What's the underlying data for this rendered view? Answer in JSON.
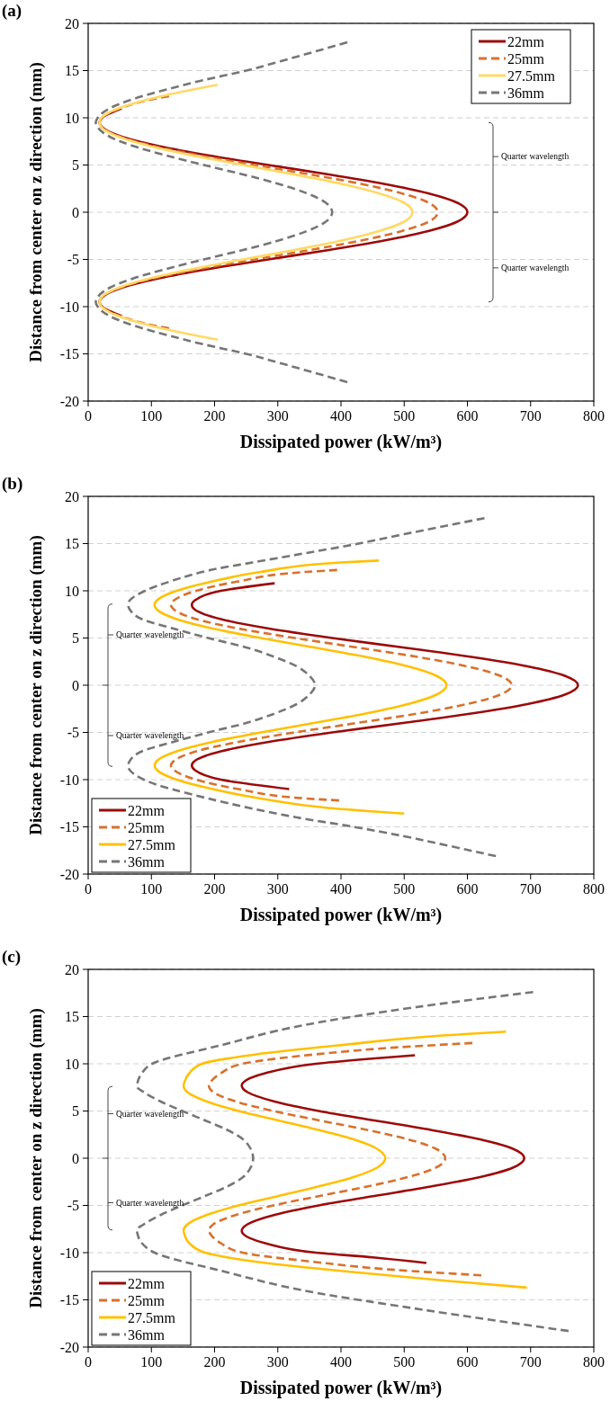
{
  "chart_data": [
    {
      "type": "line",
      "title": "(a)",
      "xlabel": "Dissipated power (kW/m³)",
      "ylabel": "Distance from center on z direction (mm)",
      "xlim": [
        0,
        800
      ],
      "xticks": [
        0,
        100,
        200,
        300,
        400,
        500,
        600,
        700,
        800
      ],
      "ylim": [
        -20,
        20
      ],
      "yticks": [
        -20,
        -15,
        -10,
        -5,
        0,
        5,
        10,
        15,
        20
      ],
      "grid": "y",
      "legend": "top right",
      "annotations": [
        "Quarter wavelength",
        "Quarter wavelength"
      ],
      "series": [
        {
          "name": "22mm",
          "color": "#9b0a0a",
          "line_style": "solid",
          "values": [
            11,
            10,
            9.5,
            9,
            8,
            7,
            6,
            5,
            4,
            3,
            2,
            1,
            0,
            -1,
            -2,
            -3,
            -4,
            -5,
            -6,
            -7,
            -8,
            -9,
            -9.5,
            -10,
            -11
          ],
          "x": [
            53,
            22,
            18,
            22,
            53,
            112,
            192,
            285,
            381,
            468,
            538,
            584,
            600,
            584,
            538,
            468,
            381,
            285,
            192,
            112,
            53,
            22,
            18,
            22,
            53
          ]
        },
        {
          "name": "25mm",
          "color": "#d8712d",
          "line_style": "dashed",
          "values": [
            12.3,
            12,
            11,
            10,
            9.5,
            9,
            8,
            7,
            6,
            5,
            4,
            3,
            2,
            1,
            0,
            -1,
            -2,
            -3,
            -4,
            -5,
            -6,
            -7,
            -8,
            -9,
            -9.5,
            -10,
            -11,
            -12,
            -12.3
          ],
          "x": [
            128,
            104,
            50,
            22,
            18,
            22,
            50,
            104,
            178,
            263,
            351,
            432,
            496,
            539,
            553,
            539,
            496,
            432,
            351,
            263,
            178,
            104,
            50,
            22,
            18,
            22,
            50,
            104,
            128
          ]
        },
        {
          "name": "27.5mm",
          "color": "#ffd966",
          "line_style": "solid",
          "values": [
            13.5,
            13,
            12,
            11,
            10,
            9.5,
            9,
            8,
            7,
            6,
            5,
            4,
            3,
            2,
            1,
            0,
            -1,
            -2,
            -3,
            -4,
            -5,
            -6,
            -7,
            -8,
            -9,
            -9.5,
            -10,
            -11,
            -12,
            -13,
            -13.5
          ],
          "x": [
            205,
            166,
            98,
            48,
            21,
            18,
            21,
            48,
            98,
            166,
            245,
            326,
            401,
            460,
            500,
            513,
            500,
            460,
            401,
            326,
            245,
            166,
            98,
            48,
            21,
            18,
            21,
            48,
            98,
            166,
            205
          ]
        },
        {
          "name": "36mm",
          "color": "#767676",
          "line_style": "dashed",
          "values": [
            18,
            17,
            16,
            15,
            14,
            13,
            12,
            11,
            10,
            9.5,
            9,
            8,
            7,
            6,
            5,
            4,
            3,
            2,
            1,
            0,
            -1,
            -2,
            -3,
            -4,
            -5,
            -6,
            -7,
            -8,
            -9,
            -9.5,
            -10,
            -11,
            -12,
            -13,
            -14,
            -15,
            -16,
            -17,
            -18
          ],
          "x": [
            410,
            358,
            305,
            250,
            183,
            124,
            72,
            34,
            15,
            12,
            15,
            34,
            72,
            124,
            183,
            245,
            301,
            346,
            376,
            386,
            376,
            346,
            301,
            245,
            183,
            124,
            72,
            34,
            15,
            12,
            15,
            34,
            72,
            124,
            183,
            250,
            305,
            358,
            410
          ]
        }
      ]
    },
    {
      "type": "line",
      "title": "(b)",
      "xlabel": "Dissipated power (kW/m³)",
      "ylabel": "Distance from center on z direction (mm)",
      "xlim": [
        0,
        800
      ],
      "xticks": [
        0,
        100,
        200,
        300,
        400,
        500,
        600,
        700,
        800
      ],
      "ylim": [
        -20,
        20
      ],
      "yticks": [
        -20,
        -15,
        -10,
        -5,
        0,
        5,
        10,
        15,
        20
      ],
      "grid": "y",
      "legend": "bottom left",
      "annotations": [
        "Quarter wavelength",
        "Quarter wavelength"
      ],
      "series": [
        {
          "name": "22mm",
          "color": "#9b0a0a",
          "line_style": "solid",
          "values": [
            10.8,
            10,
            9,
            8.5,
            8,
            7,
            6,
            5,
            4,
            3,
            2,
            1,
            0,
            -1,
            -2,
            -3,
            -4,
            -5,
            -6,
            -7,
            -8,
            -8.5,
            -9,
            -10,
            -11
          ],
          "x": [
            295,
            210,
            169,
            164,
            169,
            210,
            286,
            386,
            498,
            606,
            695,
            754,
            775,
            754,
            695,
            606,
            498,
            386,
            286,
            210,
            169,
            164,
            169,
            210,
            318
          ]
        },
        {
          "name": "25mm",
          "color": "#d8712d",
          "line_style": "dashed",
          "values": [
            12.2,
            12,
            11,
            10,
            9,
            8.5,
            8,
            7,
            6,
            5,
            4,
            3,
            2,
            1,
            0,
            -1,
            -2,
            -3,
            -4,
            -5,
            -6,
            -7,
            -8,
            -8.5,
            -9,
            -10,
            -11,
            -12,
            -12.2
          ],
          "x": [
            394,
            345,
            238,
            171,
            136,
            131,
            136,
            171,
            238,
            327,
            425,
            521,
            599,
            652,
            670,
            652,
            599,
            521,
            425,
            327,
            238,
            171,
            136,
            131,
            136,
            171,
            238,
            345,
            397
          ]
        },
        {
          "name": "27.5mm",
          "color": "#ffc000",
          "line_style": "solid",
          "values": [
            13.2,
            13,
            12,
            11,
            10,
            9,
            8.5,
            8,
            7,
            6,
            5,
            4,
            3,
            2,
            1,
            0,
            -1,
            -2,
            -3,
            -4,
            -5,
            -6,
            -7,
            -8,
            -8.5,
            -9,
            -10,
            -11,
            -12,
            -13,
            -13.6
          ],
          "x": [
            460,
            400,
            273,
            197,
            140,
            109,
            105,
            109,
            140,
            197,
            273,
            357,
            439,
            506,
            551,
            567,
            551,
            506,
            439,
            357,
            273,
            197,
            140,
            109,
            105,
            109,
            140,
            197,
            273,
            380,
            500
          ]
        },
        {
          "name": "36mm",
          "color": "#767676",
          "line_style": "dashed",
          "values": [
            17.7,
            17,
            16,
            15,
            14,
            13,
            12.3,
            11,
            10,
            9,
            8.6,
            8,
            7,
            6,
            5,
            4,
            3,
            2,
            1,
            0,
            -1,
            -2,
            -3,
            -4,
            -5,
            -6,
            -7,
            -8,
            -8.6,
            -9,
            -10,
            -12,
            -13,
            -14,
            -15,
            -16,
            -17,
            -18.1
          ],
          "x": [
            627,
            575,
            500,
            428,
            345,
            260,
            201,
            130,
            90,
            66,
            63,
            66,
            85,
            135,
            190,
            250,
            295,
            330,
            350,
            359,
            350,
            330,
            295,
            250,
            190,
            135,
            85,
            66,
            63,
            66,
            88,
            190,
            255,
            330,
            420,
            500,
            570,
            645
          ]
        }
      ]
    },
    {
      "type": "line",
      "title": "(c)",
      "xlabel": "Dissipated power (kW/m³)",
      "ylabel": "Distance from center on z direction (mm)",
      "xlim": [
        0,
        800
      ],
      "xticks": [
        0,
        100,
        200,
        300,
        400,
        500,
        600,
        700,
        800
      ],
      "ylim": [
        -20,
        20
      ],
      "yticks": [
        -20,
        -15,
        -10,
        -5,
        0,
        5,
        10,
        15,
        20
      ],
      "grid": "y",
      "legend": "bottom left",
      "annotations": [
        "Quarter wavelength",
        "Quarter wavelength"
      ],
      "series": [
        {
          "name": "22mm",
          "color": "#9b0a0a",
          "line_style": "solid",
          "values": [
            10.9,
            10.5,
            10,
            9,
            8,
            7.7,
            7,
            6,
            5,
            4,
            3,
            2,
            1,
            0,
            -1,
            -2,
            -3,
            -4,
            -5,
            -6,
            -7,
            -7.7,
            -8,
            -9,
            -10,
            -10.5,
            -11.1
          ],
          "x": [
            517,
            440,
            360,
            280,
            245,
            243,
            252,
            295,
            365,
            453,
            542,
            620,
            672,
            690,
            672,
            620,
            542,
            453,
            365,
            295,
            252,
            243,
            245,
            280,
            360,
            450,
            535
          ]
        },
        {
          "name": "25mm",
          "color": "#d8712d",
          "line_style": "dashed",
          "values": [
            12.2,
            11.7,
            11,
            10,
            9,
            8,
            7.7,
            7,
            6,
            5,
            4,
            3,
            2,
            1,
            0,
            -1,
            -2,
            -3,
            -4,
            -5,
            -6,
            -7,
            -7.7,
            -8,
            -9,
            -10,
            -11,
            -11.8,
            -12.4
          ],
          "x": [
            608,
            480,
            360,
            244,
            210,
            193,
            191,
            198,
            234,
            293,
            366,
            441,
            506,
            550,
            565,
            550,
            506,
            441,
            366,
            293,
            234,
            198,
            191,
            193,
            210,
            244,
            360,
            480,
            622
          ]
        },
        {
          "name": "27.5mm",
          "color": "#ffc000",
          "line_style": "solid",
          "values": [
            13.4,
            13,
            12,
            11,
            10,
            9,
            8,
            7.7,
            7,
            6,
            5,
            4,
            3,
            2,
            1,
            0,
            -1,
            -2,
            -3,
            -4,
            -5,
            -6,
            -7,
            -7.7,
            -8,
            -9,
            -10,
            -11,
            -12,
            -13,
            -13.7
          ],
          "x": [
            661,
            561,
            403,
            266,
            180,
            160,
            152,
            151,
            157,
            188,
            238,
            301,
            364,
            420,
            457,
            470,
            457,
            420,
            364,
            301,
            238,
            188,
            157,
            151,
            152,
            160,
            185,
            270,
            410,
            570,
            694
          ]
        },
        {
          "name": "36mm",
          "color": "#767676",
          "line_style": "dashed",
          "values": [
            17.6,
            16,
            14,
            12,
            10,
            9,
            8,
            7.6,
            7,
            6,
            5,
            4,
            3,
            2,
            1,
            0,
            -1,
            -2,
            -3,
            -4,
            -5,
            -6,
            -7,
            -7.6,
            -8,
            -9,
            -10,
            -12,
            -14,
            -16,
            -18.3
          ],
          "x": [
            704,
            519,
            334,
            212,
            101,
            85,
            78,
            77,
            88,
            115,
            149,
            185,
            220,
            245,
            257,
            261,
            257,
            245,
            220,
            185,
            149,
            115,
            88,
            77,
            78,
            85,
            105,
            215,
            340,
            525,
            760
          ]
        }
      ]
    }
  ]
}
